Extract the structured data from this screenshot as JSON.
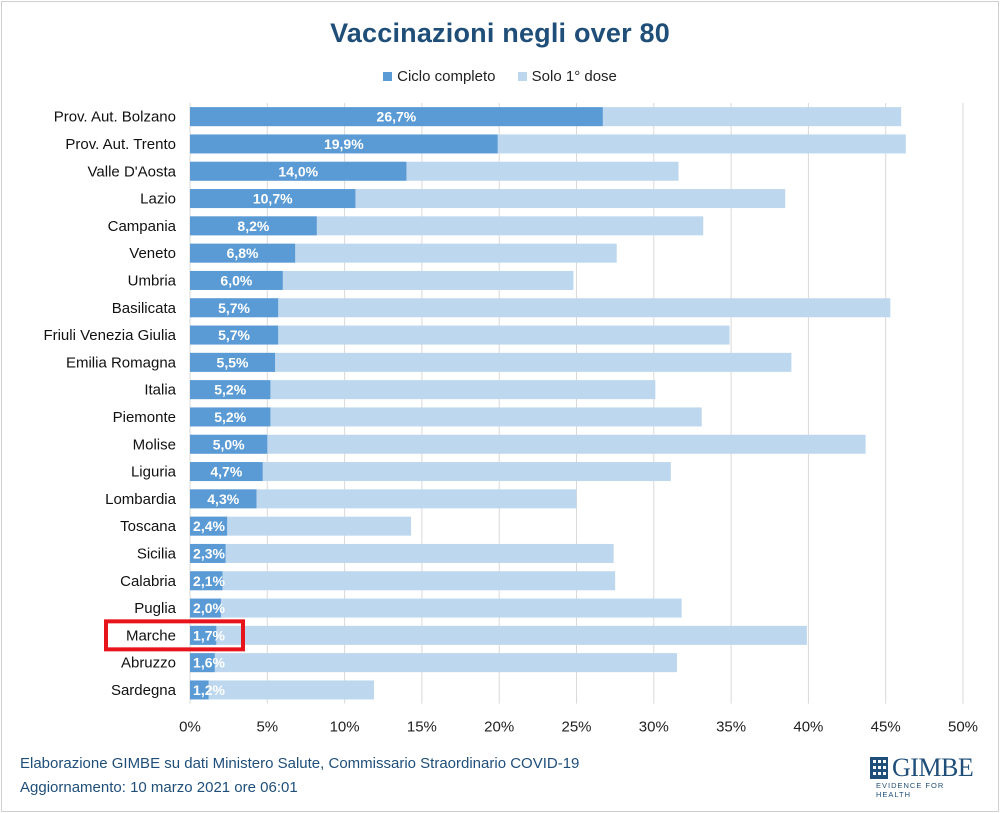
{
  "title": "Vaccinazioni negli over 80",
  "legend": {
    "full_label": "Ciclo completo",
    "first_label": "Solo 1° dose"
  },
  "colors": {
    "full": "#5b9bd5",
    "first": "#bdd7ee",
    "highlight": "#e8141c",
    "title": "#1f4e79"
  },
  "chart_data": {
    "type": "bar",
    "orientation": "horizontal",
    "stacking": "overlay",
    "title": "Vaccinazioni negli over 80",
    "categories": [
      "Prov. Aut. Bolzano",
      "Prov. Aut. Trento",
      "Valle D'Aosta",
      "Lazio",
      "Campania",
      "Veneto",
      "Umbria",
      "Basilicata",
      "Friuli Venezia Giulia",
      "Emilia Romagna",
      "Italia",
      "Piemonte",
      "Molise",
      "Liguria",
      "Lombardia",
      "Toscana",
      "Sicilia",
      "Calabria",
      "Puglia",
      "Marche",
      "Abruzzo",
      "Sardegna"
    ],
    "series": [
      {
        "name": "Ciclo completo",
        "values": [
          26.7,
          19.9,
          14.0,
          10.7,
          8.2,
          6.8,
          6.0,
          5.7,
          5.7,
          5.5,
          5.2,
          5.2,
          5.0,
          4.7,
          4.3,
          2.4,
          2.3,
          2.1,
          2.0,
          1.7,
          1.6,
          1.2
        ],
        "labels": [
          "26,7%",
          "19,9%",
          "14,0%",
          "10,7%",
          "8,2%",
          "6,8%",
          "6,0%",
          "5,7%",
          "5,7%",
          "5,5%",
          "5,2%",
          "5,2%",
          "5,0%",
          "4,7%",
          "4,3%",
          "2,4%",
          "2,3%",
          "2,1%",
          "2,0%",
          "1,7%",
          "1,6%",
          "1,2%"
        ]
      },
      {
        "name": "Solo 1° dose",
        "values": [
          46.0,
          46.3,
          31.6,
          38.5,
          33.2,
          27.6,
          24.8,
          45.3,
          34.9,
          38.9,
          30.1,
          33.1,
          43.7,
          31.1,
          25.0,
          14.3,
          27.4,
          27.5,
          31.8,
          39.9,
          31.5,
          11.9
        ]
      }
    ],
    "xlim": [
      0,
      50
    ],
    "xticks": [
      "0%",
      "5%",
      "10%",
      "15%",
      "20%",
      "25%",
      "30%",
      "35%",
      "40%",
      "45%",
      "50%"
    ],
    "grid": "vertical",
    "legend_position": "top",
    "highlighted_category": "Marche"
  },
  "footer": {
    "source": "Elaborazione GIMBE su dati Ministero Salute, Commissario Straordinario COVID-19",
    "updated": "Aggiornamento: 10 marzo 2021  ore 06:01"
  },
  "logo": {
    "name": "GIMBE",
    "tagline": "EVIDENCE FOR HEALTH",
    "icon": "gimbe-logo-icon"
  }
}
